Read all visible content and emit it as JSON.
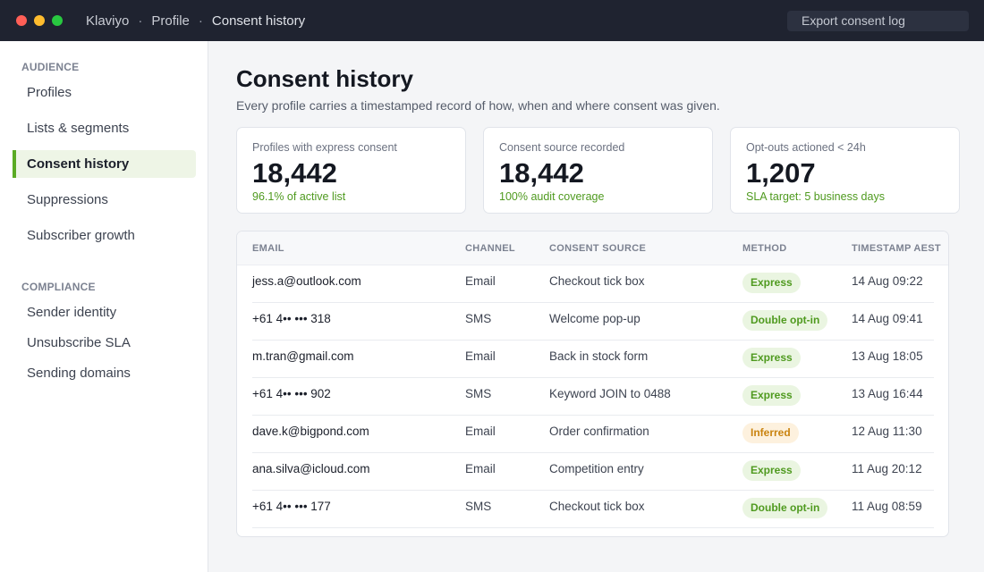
{
  "titlebar": {
    "crumbs": [
      "Klaviyo",
      "Profile",
      "Consent history"
    ],
    "separator": "·",
    "export_label": "Export consent log"
  },
  "sidebar": {
    "sections": [
      {
        "title": "AUDIENCE",
        "items": [
          "Profiles",
          "Lists & segments",
          "Consent history",
          "Suppressions",
          "Subscriber growth"
        ]
      },
      {
        "title": "COMPLIANCE",
        "items": [
          "Sender identity",
          "Unsubscribe SLA",
          "Sending domains"
        ]
      }
    ],
    "active_item": "Consent history"
  },
  "page": {
    "title": "Consent history",
    "subtitle": "Every profile carries a timestamped record of how, when and where consent was given."
  },
  "stats": [
    {
      "label": "Profiles with express consent",
      "value": "18,442",
      "note": "96.1% of active list"
    },
    {
      "label": "Consent source recorded",
      "value": "18,442",
      "note": "100% audit coverage"
    },
    {
      "label": "Opt-outs actioned < 24h",
      "value": "1,207",
      "note": "SLA target: 5 business days"
    }
  ],
  "table": {
    "headers": [
      "EMAIL",
      "CHANNEL",
      "CONSENT SOURCE",
      "METHOD",
      "TIMESTAMP AEST"
    ],
    "rows": [
      {
        "email": "jess.a@outlook.com",
        "channel": "Email",
        "source": "Checkout tick box",
        "method": "Express",
        "timestamp": "14 Aug 09:22"
      },
      {
        "email": "+61 4•• ••• 318",
        "channel": "SMS",
        "source": "Welcome pop-up",
        "method": "Double opt-in",
        "timestamp": "14 Aug 09:41"
      },
      {
        "email": "m.tran@gmail.com",
        "channel": "Email",
        "source": "Back in stock form",
        "method": "Express",
        "timestamp": "13 Aug 18:05"
      },
      {
        "email": "+61 4•• ••• 902",
        "channel": "SMS",
        "source": "Keyword JOIN to 0488",
        "method": "Express",
        "timestamp": "13 Aug 16:44"
      },
      {
        "email": "dave.k@bigpond.com",
        "channel": "Email",
        "source": "Order confirmation",
        "method": "Inferred",
        "timestamp": "12 Aug 11:30"
      },
      {
        "email": "ana.silva@icloud.com",
        "channel": "Email",
        "source": "Competition entry",
        "method": "Express",
        "timestamp": "11 Aug 20:12"
      },
      {
        "email": "+61 4•• ••• 177",
        "channel": "SMS",
        "source": "Checkout tick box",
        "method": "Double opt-in",
        "timestamp": "11 Aug 08:59"
      }
    ]
  },
  "colors": {
    "accent_green": "#5aab24",
    "express_bg": "#eaf5e1",
    "inferred_bg": "#fdf1de",
    "inferred_text": "#c9830f"
  }
}
